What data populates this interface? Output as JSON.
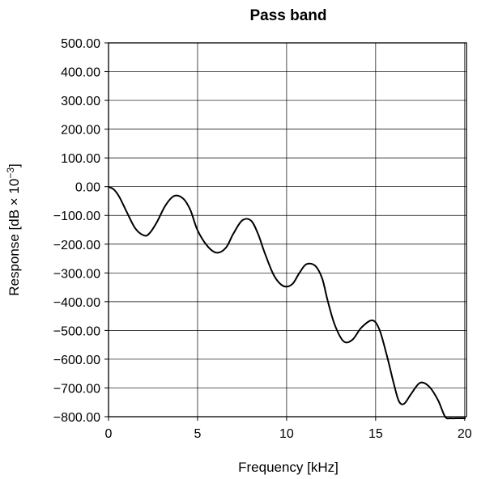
{
  "chart_data": {
    "type": "line",
    "title": "Pass band",
    "xlabel": "Frequency [kHz]",
    "ylabel_prefix": "Response [dB × 10",
    "ylabel_exp": "−3",
    "ylabel_suffix": "]",
    "xlim": [
      0,
      20.1
    ],
    "ylim": [
      -800,
      500
    ],
    "x_ticks": [
      0,
      5,
      10,
      15,
      20
    ],
    "x_tick_labels": [
      "0",
      "5",
      "10",
      "15",
      "20"
    ],
    "y_ticks": [
      500,
      400,
      300,
      200,
      100,
      0,
      -100,
      -200,
      -300,
      -400,
      -500,
      -600,
      -700,
      -800
    ],
    "y_tick_labels": [
      "500.00",
      "400.00",
      "300.00",
      "200.00",
      "100.00",
      "0.00",
      "−100.00",
      "−200.00",
      "−300.00",
      "−400.00",
      "−500.00",
      "−600.00",
      "−700.00",
      "−800.00"
    ],
    "grid": true,
    "series": [
      {
        "x": [
          0,
          0.3,
          0.6,
          1.0,
          1.5,
          2.0,
          2.3,
          2.7,
          3.2,
          3.7,
          4.2,
          4.6,
          5.0,
          5.6,
          6.1,
          6.6,
          7.0,
          7.5,
          8.0,
          8.4,
          8.8,
          9.3,
          9.8,
          10.3,
          10.7,
          11.1,
          11.6,
          12.0,
          12.3,
          12.7,
          13.2,
          13.7,
          14.2,
          14.8,
          15.2,
          15.6,
          16.0,
          16.3,
          16.6,
          17.0,
          17.5,
          18.0,
          18.5,
          18.9,
          19.2,
          19.5,
          19.8,
          20.0,
          20.05
        ],
        "y": [
          0,
          -10,
          -35,
          -85,
          -145,
          -170,
          -162,
          -125,
          -65,
          -32,
          -42,
          -82,
          -152,
          -210,
          -230,
          -212,
          -165,
          -118,
          -118,
          -165,
          -235,
          -310,
          -345,
          -340,
          -302,
          -270,
          -275,
          -320,
          -395,
          -480,
          -538,
          -532,
          -490,
          -465,
          -495,
          -580,
          -680,
          -745,
          -755,
          -720,
          -682,
          -695,
          -742,
          -800,
          -815,
          -830,
          -840,
          -845,
          -848
        ]
      }
    ]
  }
}
